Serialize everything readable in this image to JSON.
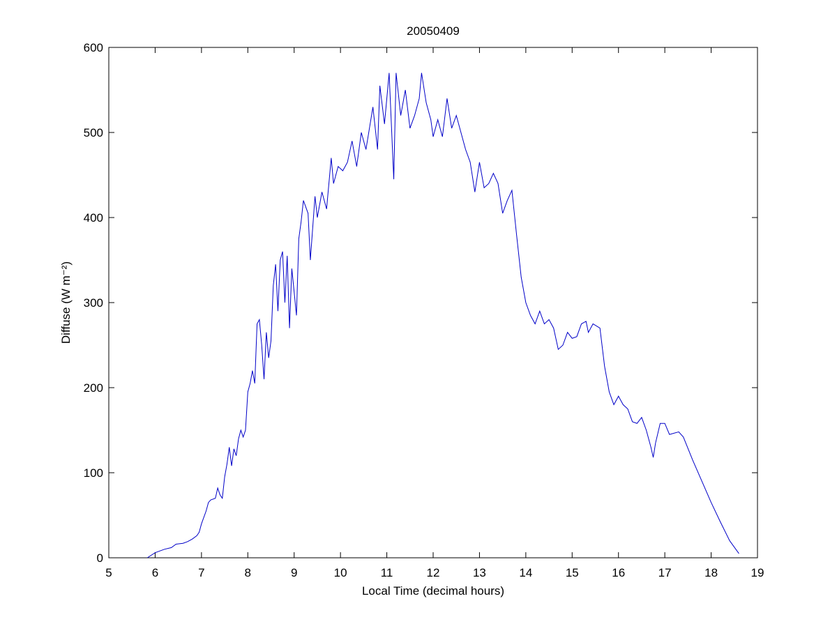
{
  "chart_data": {
    "type": "line",
    "title": "20050409",
    "x_label": "Local Time (decimal hours)",
    "y_label": "Diffuse (W m⁻²)",
    "x": [
      5.83,
      6.0,
      6.2,
      6.35,
      6.45,
      6.6,
      6.7,
      6.8,
      6.9,
      6.95,
      7.0,
      7.1,
      7.15,
      7.2,
      7.3,
      7.35,
      7.4,
      7.45,
      7.5,
      7.55,
      7.6,
      7.65,
      7.7,
      7.75,
      7.8,
      7.85,
      7.9,
      7.95,
      8.0,
      8.05,
      8.1,
      8.15,
      8.2,
      8.25,
      8.3,
      8.35,
      8.4,
      8.45,
      8.5,
      8.55,
      8.6,
      8.65,
      8.7,
      8.75,
      8.8,
      8.85,
      8.9,
      8.95,
      9.05,
      9.1,
      9.15,
      9.2,
      9.3,
      9.35,
      9.45,
      9.5,
      9.6,
      9.7,
      9.8,
      9.85,
      9.95,
      10.05,
      10.15,
      10.25,
      10.35,
      10.45,
      10.55,
      10.7,
      10.8,
      10.85,
      10.95,
      11.05,
      11.15,
      11.2,
      11.3,
      11.4,
      11.5,
      11.6,
      11.7,
      11.75,
      11.85,
      11.95,
      12.0,
      12.1,
      12.2,
      12.3,
      12.4,
      12.5,
      12.6,
      12.7,
      12.8,
      12.9,
      13.0,
      13.1,
      13.2,
      13.3,
      13.4,
      13.5,
      13.6,
      13.7,
      13.8,
      13.9,
      14.0,
      14.1,
      14.2,
      14.3,
      14.4,
      14.5,
      14.6,
      14.7,
      14.8,
      14.9,
      15.0,
      15.1,
      15.2,
      15.3,
      15.35,
      15.45,
      15.6,
      15.7,
      15.8,
      15.9,
      16.0,
      16.1,
      16.2,
      16.3,
      16.4,
      16.5,
      16.6,
      16.7,
      16.75,
      16.8,
      16.9,
      17.0,
      17.1,
      17.3,
      17.4,
      17.6,
      17.8,
      18.0,
      18.2,
      18.4,
      18.6
    ],
    "series": [
      {
        "name": "Diffuse",
        "color": "#0000c8",
        "values": [
          0,
          6,
          10,
          12,
          16,
          17,
          19,
          22,
          26,
          30,
          40,
          55,
          65,
          68,
          70,
          82,
          74,
          70,
          95,
          110,
          130,
          108,
          128,
          120,
          140,
          150,
          142,
          150,
          195,
          205,
          220,
          205,
          275,
          280,
          250,
          210,
          265,
          235,
          255,
          320,
          345,
          290,
          350,
          360,
          300,
          355,
          270,
          340,
          285,
          375,
          395,
          420,
          405,
          350,
          425,
          400,
          430,
          410,
          470,
          440,
          460,
          455,
          465,
          490,
          460,
          500,
          480,
          530,
          480,
          555,
          510,
          570,
          445,
          570,
          520,
          550,
          505,
          520,
          540,
          570,
          535,
          515,
          495,
          515,
          495,
          540,
          505,
          520,
          500,
          480,
          465,
          430,
          465,
          435,
          440,
          452,
          440,
          405,
          420,
          432,
          380,
          330,
          300,
          285,
          275,
          290,
          275,
          280,
          270,
          245,
          250,
          265,
          258,
          260,
          275,
          278,
          265,
          275,
          270,
          225,
          195,
          180,
          190,
          180,
          175,
          160,
          158,
          165,
          150,
          130,
          118,
          135,
          158,
          158,
          145,
          148,
          142,
          115,
          90,
          65,
          42,
          20,
          5
        ]
      }
    ],
    "xlim": [
      5,
      19
    ],
    "xticks": [
      5,
      6,
      7,
      8,
      9,
      10,
      11,
      12,
      13,
      14,
      15,
      16,
      17,
      18,
      19
    ],
    "ylim": [
      0,
      600
    ],
    "yticks": [
      0,
      100,
      200,
      300,
      400,
      500,
      600
    ],
    "grid": false
  }
}
